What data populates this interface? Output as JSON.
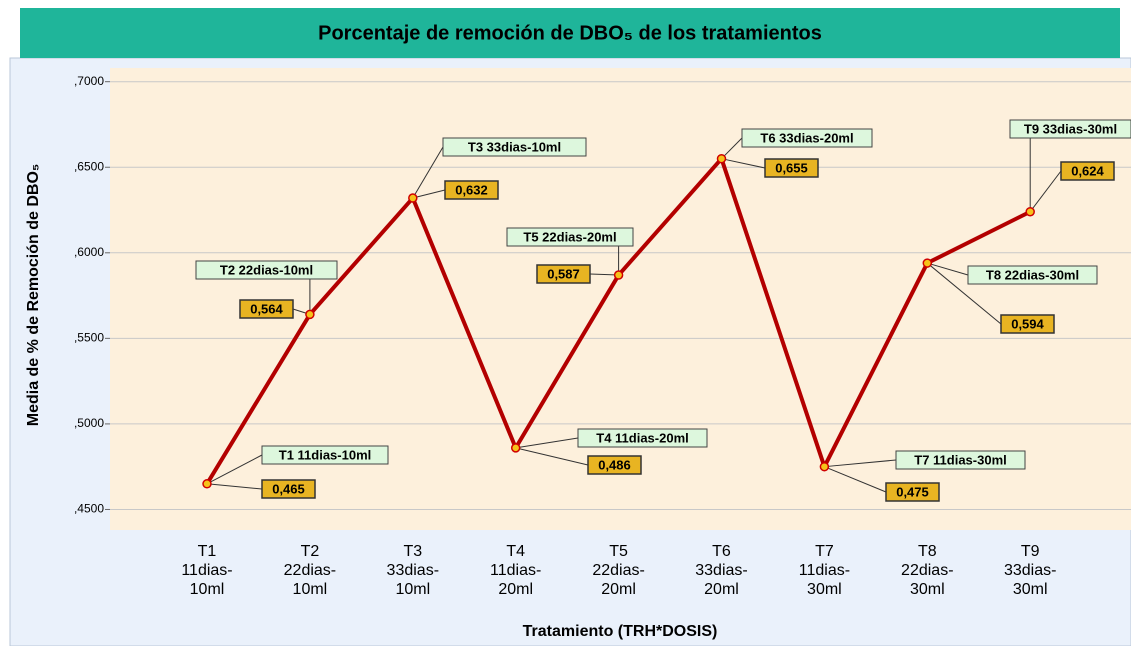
{
  "chart_data": {
    "type": "line",
    "title": "Porcentaje de remoción de DBO₅ de los tratamientos",
    "y_label": "Media de % de Remoción de DBO₅",
    "x_label": "Tratamiento (TRH*DOSIS)",
    "categories": [
      [
        "T1",
        "11dias-",
        "10ml"
      ],
      [
        "T2",
        "22dias-",
        "10ml"
      ],
      [
        "T3",
        "33dias-",
        "10ml"
      ],
      [
        "T4",
        "11dias-",
        "20ml"
      ],
      [
        "T5",
        "22dias-",
        "20ml"
      ],
      [
        "T6",
        "33dias-",
        "20ml"
      ],
      [
        "T7",
        "11dias-",
        "30ml"
      ],
      [
        "T8",
        "22dias-",
        "30ml"
      ],
      [
        "T9",
        "33dias-",
        "30ml"
      ]
    ],
    "values": [
      0.465,
      0.564,
      0.632,
      0.486,
      0.587,
      0.655,
      0.475,
      0.594,
      0.624
    ],
    "value_labels": [
      "0,465",
      "0,564",
      "0,632",
      "0,486",
      "0,587",
      "0,655",
      "0,475",
      "0,594",
      "0,624"
    ],
    "point_labels": [
      "T1 11dias-10ml",
      "T2 22dias-10ml",
      "T3 33dias-10ml",
      "T4 11dias-20ml",
      "T5 22dias-20ml",
      "T6 33dias-20ml",
      "T7 11dias-30ml",
      "T8 22dias-30ml",
      "T9 33dias-30ml"
    ],
    "color": "#b30000",
    "ylim": [
      0.438,
      0.708
    ],
    "yticks": [
      {
        "value": 0.45,
        "label": ",4500"
      },
      {
        "value": 0.5,
        "label": ",5000"
      },
      {
        "value": 0.55,
        "label": ",5500"
      },
      {
        "value": 0.6,
        "label": ",6000"
      },
      {
        "value": 0.65,
        "label": ",6500"
      },
      {
        "value": 0.7,
        "label": ",7000"
      }
    ],
    "grid": true
  }
}
